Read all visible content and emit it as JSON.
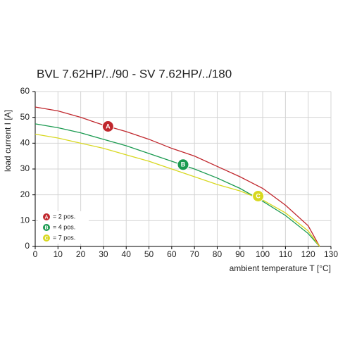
{
  "chart_data": {
    "type": "line",
    "title": "BVL 7.62HP/../90 - SV 7.62HP/../180",
    "x_label": "ambient temperature T [°C]",
    "y_label": "load current I [A]",
    "x": [
      0,
      10,
      20,
      30,
      40,
      50,
      60,
      70,
      80,
      90,
      100,
      110,
      120,
      125
    ],
    "series": [
      {
        "name": "= 2 pos.",
        "color": "#c0272d",
        "values": [
          54,
          52.5,
          50,
          47,
          44.5,
          41.5,
          38,
          35,
          31,
          27,
          22.5,
          16,
          8,
          0
        ],
        "marker": {
          "label": "A",
          "x": 32,
          "y": 46.5
        }
      },
      {
        "name": "= 4 pos.",
        "color": "#1a9a50",
        "values": [
          47.5,
          46,
          44,
          41.5,
          39,
          36,
          33,
          30,
          26.5,
          22.5,
          17.5,
          12,
          5,
          0
        ],
        "marker": {
          "label": "B",
          "x": 65,
          "y": 31.7
        }
      },
      {
        "name": "= 7 pos.",
        "color": "#d8d820",
        "values": [
          43.5,
          42,
          40,
          38,
          35.5,
          33,
          30,
          27,
          24,
          21.5,
          18,
          13,
          6,
          0
        ],
        "marker": {
          "label": "C",
          "x": 98,
          "y": 19.5
        }
      }
    ],
    "xlim": [
      0,
      130
    ],
    "xticks": [
      0,
      10,
      20,
      30,
      40,
      50,
      60,
      70,
      80,
      90,
      100,
      110,
      120,
      130
    ],
    "ylim": [
      0,
      60
    ],
    "yticks": [
      0,
      10,
      20,
      30,
      40,
      50,
      60
    ],
    "grid": true,
    "legend": "lower left"
  }
}
